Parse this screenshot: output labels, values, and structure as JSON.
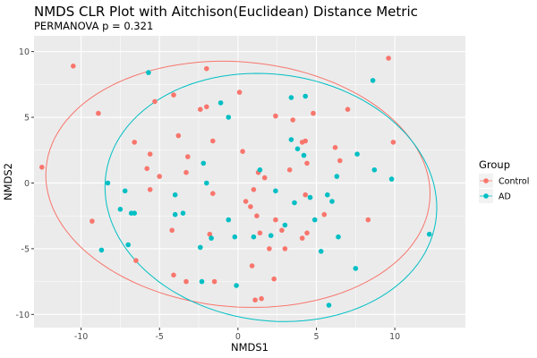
{
  "chart_data": {
    "type": "scatter",
    "title": "NMDS CLR Plot with Aitchison(Euclidean) Distance Metric",
    "subtitle": "PERMANOVA p = 0.321",
    "xlabel": "NMDS1",
    "ylabel": "NMDS2",
    "xlim": [
      -13.0,
      14.5
    ],
    "ylim": [
      -11.0,
      11.2
    ],
    "xticks": [
      -10,
      -5,
      0,
      5,
      10
    ],
    "yticks": [
      -10,
      -5,
      0,
      5,
      10
    ],
    "xtick_labels": [
      "-10",
      "-5",
      "0",
      "5",
      "10"
    ],
    "ytick_labels": [
      "-10",
      "-5",
      "0",
      "5",
      "10"
    ],
    "grid": true,
    "panel_background": "#EBEBEB",
    "legend": {
      "title": "Group",
      "placement": "right",
      "items": [
        {
          "label": "Control",
          "color": "#F8766D"
        },
        {
          "label": "AD",
          "color": "#00BFC4"
        }
      ]
    },
    "series": [
      {
        "name": "Control",
        "color": "#F8766D",
        "ellipse": {
          "cx": 0.0,
          "cy": -0.1,
          "rx": 12.3,
          "ry": 9.3,
          "angle_deg": -8
        },
        "points": [
          [
            -12.5,
            1.2
          ],
          [
            -10.5,
            8.9
          ],
          [
            -8.9,
            5.3
          ],
          [
            -9.3,
            -2.9
          ],
          [
            -6.6,
            3.1
          ],
          [
            -6.5,
            -5.9
          ],
          [
            -5.8,
            1.1
          ],
          [
            -5.6,
            2.2
          ],
          [
            -5.6,
            -0.5
          ],
          [
            -5.3,
            6.2
          ],
          [
            -5.0,
            0.5
          ],
          [
            -4.1,
            6.7
          ],
          [
            -3.8,
            3.6
          ],
          [
            -4.2,
            -3.6
          ],
          [
            -4.1,
            -7.0
          ],
          [
            -3.3,
            0.8
          ],
          [
            -3.2,
            2.0
          ],
          [
            -3.3,
            -7.5
          ],
          [
            -2.4,
            5.6
          ],
          [
            -2.0,
            8.7
          ],
          [
            -2.0,
            5.8
          ],
          [
            -1.6,
            3.2
          ],
          [
            -1.6,
            -0.8
          ],
          [
            -1.8,
            -3.9
          ],
          [
            -1.5,
            -7.5
          ],
          [
            0.1,
            6.9
          ],
          [
            0.3,
            2.4
          ],
          [
            0.5,
            -1.4
          ],
          [
            1.0,
            -0.5
          ],
          [
            0.8,
            -1.8
          ],
          [
            1.3,
            0.8
          ],
          [
            1.2,
            -2.5
          ],
          [
            1.7,
            0.4
          ],
          [
            0.9,
            -6.3
          ],
          [
            1.4,
            -3.8
          ],
          [
            2.4,
            5.1
          ],
          [
            2.4,
            -2.8
          ],
          [
            2.8,
            -3.6
          ],
          [
            2.0,
            -5.0
          ],
          [
            2.3,
            -7.3
          ],
          [
            3.3,
            1.0
          ],
          [
            3.0,
            -5.0
          ],
          [
            1.5,
            -8.8
          ],
          [
            3.5,
            4.8
          ],
          [
            4.1,
            3.1
          ],
          [
            4.3,
            3.2
          ],
          [
            4.4,
            1.5
          ],
          [
            4.3,
            -0.9
          ],
          [
            4.8,
            5.3
          ],
          [
            4.1,
            -4.2
          ],
          [
            4.4,
            -3.8
          ],
          [
            5.5,
            -2.4
          ],
          [
            6.2,
            2.7
          ],
          [
            6.5,
            1.7
          ],
          [
            7.0,
            5.6
          ],
          [
            8.3,
            -2.8
          ],
          [
            9.6,
            9.5
          ],
          [
            9.9,
            3.1
          ],
          [
            1.1,
            -8.9
          ]
        ]
      },
      {
        "name": "AD",
        "color": "#00BFC4",
        "ellipse": {
          "cx": 2.1,
          "cy": -1.1,
          "rx": 10.7,
          "ry": 9.3,
          "angle_deg": -18
        },
        "points": [
          [
            -5.7,
            8.4
          ],
          [
            -8.3,
            0.0
          ],
          [
            -8.7,
            -5.1
          ],
          [
            -7.2,
            -0.6
          ],
          [
            -7.5,
            -2.0
          ],
          [
            -6.8,
            -2.3
          ],
          [
            -6.6,
            -2.3
          ],
          [
            -7.0,
            -4.7
          ],
          [
            -4.0,
            -0.9
          ],
          [
            -4.0,
            -2.4
          ],
          [
            -3.5,
            -2.3
          ],
          [
            -2.2,
            1.5
          ],
          [
            -2.0,
            0.0
          ],
          [
            -2.4,
            -4.9
          ],
          [
            -1.7,
            -4.2
          ],
          [
            -2.3,
            -7.5
          ],
          [
            -1.1,
            6.1
          ],
          [
            -0.6,
            5.0
          ],
          [
            -0.6,
            -2.8
          ],
          [
            -0.2,
            -4.1
          ],
          [
            -0.1,
            -7.8
          ],
          [
            1.4,
            1.0
          ],
          [
            1.0,
            -4.1
          ],
          [
            2.1,
            -4.0
          ],
          [
            2.4,
            -0.6
          ],
          [
            3.0,
            -3.2
          ],
          [
            3.4,
            3.3
          ],
          [
            3.8,
            2.6
          ],
          [
            3.6,
            -1.5
          ],
          [
            3.4,
            6.5
          ],
          [
            4.3,
            6.6
          ],
          [
            4.2,
            2.1
          ],
          [
            4.6,
            -1.1
          ],
          [
            4.9,
            -2.8
          ],
          [
            5.7,
            -0.9
          ],
          [
            5.3,
            -5.2
          ],
          [
            6.0,
            -1.4
          ],
          [
            6.3,
            0.5
          ],
          [
            6.4,
            -4.1
          ],
          [
            7.6,
            2.2
          ],
          [
            8.6,
            7.8
          ],
          [
            8.7,
            1.0
          ],
          [
            9.8,
            0.3
          ],
          [
            7.5,
            -6.5
          ],
          [
            12.2,
            -3.9
          ],
          [
            5.8,
            -9.3
          ]
        ]
      }
    ]
  }
}
